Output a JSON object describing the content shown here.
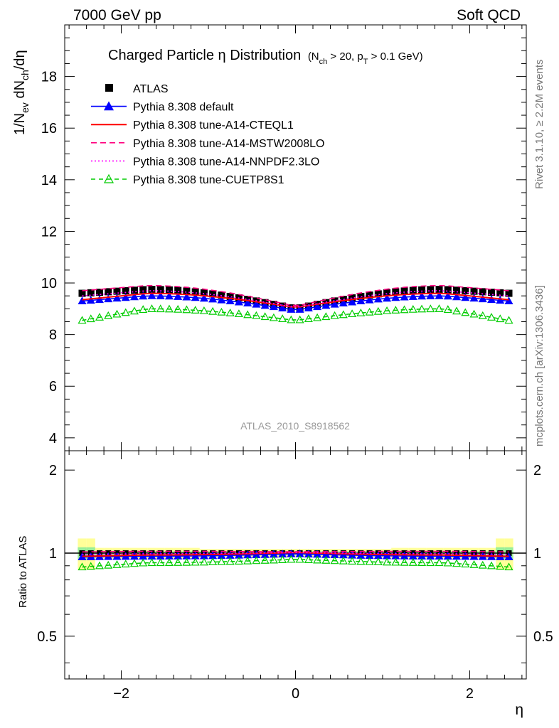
{
  "header": {
    "left": "7000 GeV pp",
    "right": "Soft QCD"
  },
  "side_labels": {
    "rivet": "Rivet 3.1.10, ≥ 2.2M events",
    "mcplots": "mcplots.cern.ch [arXiv:1306.3436]"
  },
  "chart_data": {
    "type": "line",
    "title_main": "Charged Particle η Distribution",
    "title_cut": "(N_ch > 20, p_T > 0.1 GeV)",
    "analysis_id": "ATLAS_2010_S8918562",
    "xlabel": "η",
    "ylabel_main": "1/N_ev dN_ch/dη",
    "ylabel_ratio": "Ratio to ATLAS",
    "xlim": [
      -2.65,
      2.65
    ],
    "ylim_main": [
      3.5,
      20.0
    ],
    "ylim_ratio": [
      0.35,
      2.35
    ],
    "ratio_scale": "log",
    "x_ticks": [
      "−2",
      "0",
      "2"
    ],
    "y_ticks_main": [
      "4",
      "6",
      "8",
      "10",
      "12",
      "14",
      "16",
      "18"
    ],
    "y_ticks_ratio": [
      "0.5",
      "1",
      "2"
    ],
    "legend_position": "top-left",
    "series": [
      {
        "name": "ATLAS",
        "color": "#000000",
        "style": "marker-square",
        "central": 9.0,
        "edge": 9.6,
        "peak": 9.75,
        "ratio_offset": 0.0
      },
      {
        "name": "Pythia 8.308 default",
        "color": "#0000ff",
        "style": "line-triangle",
        "central": 8.95,
        "edge": 9.3,
        "peak": 9.5,
        "ratio_offset": -0.01
      },
      {
        "name": "Pythia 8.308 tune-A14-CTEQL1",
        "color": "#ff0000",
        "style": "solid",
        "central": 9.05,
        "edge": 9.35,
        "peak": 9.6,
        "ratio_offset": 0.0
      },
      {
        "name": "Pythia 8.308 tune-A14-MSTW2008LO",
        "color": "#ff007f",
        "style": "dashed",
        "central": 9.1,
        "edge": 9.7,
        "peak": 9.9,
        "ratio_offset": 0.03
      },
      {
        "name": "Pythia 8.308 tune-A14-NNPDF2.3LO",
        "color": "#ff00ff",
        "style": "dotted",
        "central": 9.05,
        "edge": 9.5,
        "peak": 9.7,
        "ratio_offset": 0.02
      },
      {
        "name": "Pythia 8.308 tune-CUETP8S1",
        "color": "#00cc00",
        "style": "dashed-open-triangle",
        "central": 8.55,
        "edge": 8.55,
        "peak": 9.0,
        "ratio_offset": -0.05
      }
    ]
  }
}
